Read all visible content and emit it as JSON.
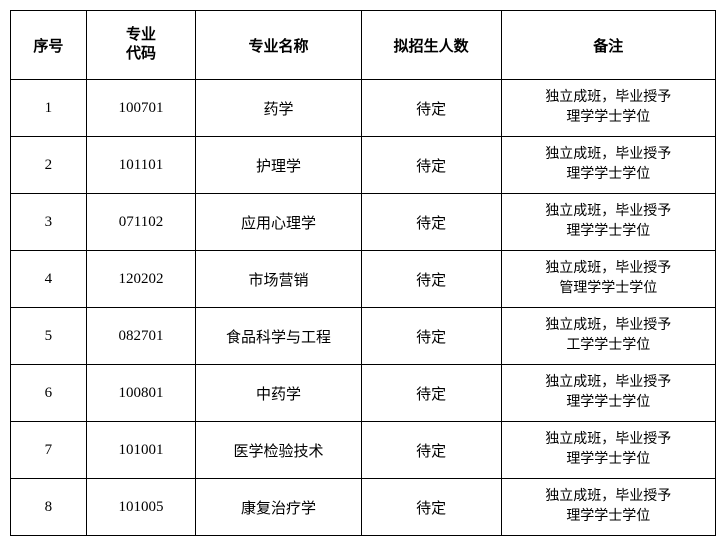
{
  "table": {
    "headers": {
      "seq": "序号",
      "code": "专业\n代码",
      "name": "专业名称",
      "enroll": "拟招生人数",
      "remark": "备注"
    },
    "rows": [
      {
        "seq": "1",
        "code": "100701",
        "name": "药学",
        "enroll": "待定",
        "remark_l1": "独立成班，毕业授予",
        "remark_l2": "理学学士学位"
      },
      {
        "seq": "2",
        "code": "101101",
        "name": "护理学",
        "enroll": "待定",
        "remark_l1": "独立成班，毕业授予",
        "remark_l2": "理学学士学位"
      },
      {
        "seq": "3",
        "code": "071102",
        "name": "应用心理学",
        "enroll": "待定",
        "remark_l1": "独立成班，毕业授予",
        "remark_l2": "理学学士学位"
      },
      {
        "seq": "4",
        "code": "120202",
        "name": "市场营销",
        "enroll": "待定",
        "remark_l1": "独立成班，毕业授予",
        "remark_l2": "管理学学士学位"
      },
      {
        "seq": "5",
        "code": "082701",
        "name": "食品科学与工程",
        "enroll": "待定",
        "remark_l1": "独立成班，毕业授予",
        "remark_l2": "工学学士学位"
      },
      {
        "seq": "6",
        "code": "100801",
        "name": "中药学",
        "enroll": "待定",
        "remark_l1": "独立成班，毕业授予",
        "remark_l2": "理学学士学位"
      },
      {
        "seq": "7",
        "code": "101001",
        "name": "医学检验技术",
        "enroll": "待定",
        "remark_l1": "独立成班，毕业授予",
        "remark_l2": "理学学士学位"
      },
      {
        "seq": "8",
        "code": "101005",
        "name": "康复治疗学",
        "enroll": "待定",
        "remark_l1": "独立成班，毕业授予",
        "remark_l2": "理学学士学位"
      }
    ]
  }
}
